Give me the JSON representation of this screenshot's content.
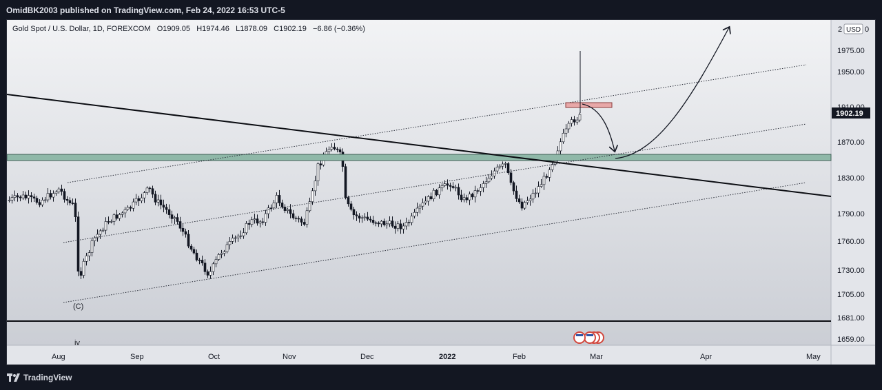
{
  "header": {
    "publisher_line": "OmidBK2003 published on TradingView.com, Feb 24, 2022 16:53 UTC-5"
  },
  "legend": {
    "symbol": "Gold Spot / U.S. Dollar, 1D, FOREXCOM",
    "open_label": "O",
    "open": "1909.05",
    "high_label": "H",
    "high": "1974.46",
    "low_label": "L",
    "low": "1878.09",
    "close_label": "C",
    "close": "1902.19",
    "change": "−6.86 (−0.36%)"
  },
  "price_axis": {
    "currency": "USD",
    "top_tick": "2",
    "top_tick_tail": "0",
    "ticks": [
      "1975.00",
      "1950.00",
      "1910.00",
      "1870.00",
      "1830.00",
      "1790.00",
      "1760.00",
      "1730.00",
      "1705.00",
      "1681.00",
      "1659.00"
    ],
    "last_price": "1902.19"
  },
  "time_axis": {
    "labels": [
      "Aug",
      "Sep",
      "Oct",
      "Nov",
      "Dec",
      "2022",
      "Feb",
      "Mar",
      "Apr",
      "May"
    ]
  },
  "annotations": {
    "wave_c": "(C)",
    "wave_iv": "iv"
  },
  "footer": {
    "brand": "TradingView"
  },
  "colors": {
    "background": "#d9dbe0",
    "candle_up": "#ffffff",
    "candle_down": "#131722",
    "zone_fill": "#8fb8a8",
    "supply_box": "#e8a8a8",
    "last_price_label": "#131722"
  }
}
